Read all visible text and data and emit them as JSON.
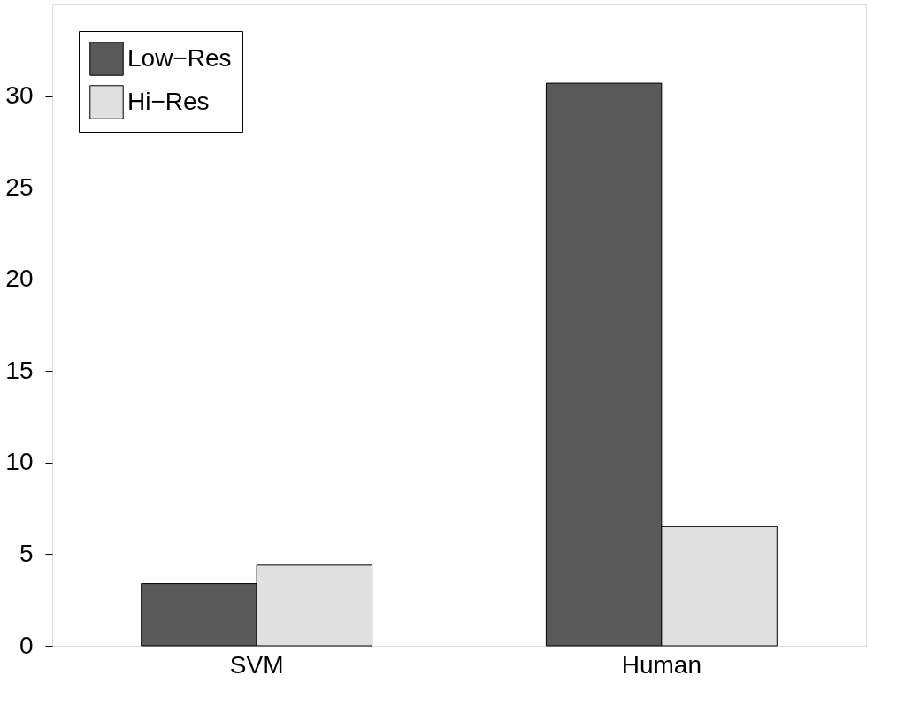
{
  "chart_data": {
    "type": "bar",
    "categories": [
      "SVM",
      "Human"
    ],
    "series": [
      {
        "name": "Low−Res",
        "color": "#595959",
        "values": [
          3.4,
          30.7
        ]
      },
      {
        "name": "Hi−Res",
        "color": "#e0e0e0",
        "values": [
          4.4,
          6.5
        ]
      }
    ],
    "ylim": [
      0,
      35
    ],
    "yticks": [
      0,
      5,
      10,
      15,
      20,
      25,
      30
    ],
    "grid": false,
    "legend": "top left"
  }
}
